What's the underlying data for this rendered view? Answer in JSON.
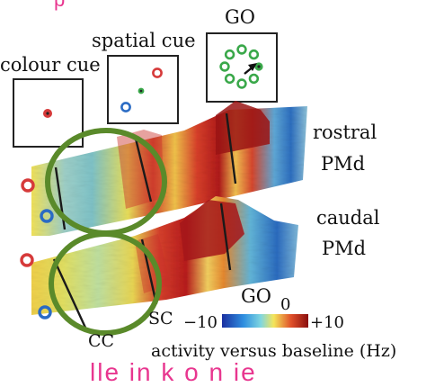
{
  "labels": {
    "colour_cue": "colour cue",
    "spatial_cue": "spatial cue",
    "go": "GO",
    "rostral_1": "rostral",
    "rostral_2": "PMd",
    "caudal_1": "caudal",
    "caudal_2": "PMd",
    "go_bottom": "GO",
    "zero": "0",
    "sc": "SC",
    "cc": "CC",
    "colorbar_min": "−10",
    "colorbar_max": "+10",
    "colorbar_caption": "activity versus baseline (Hz)"
  },
  "top_fragment": "p",
  "bottom_fragment": "lle   in   k   o   n   ie",
  "colors": {
    "pink_text": "#e8368f",
    "circle_green": "#5a8a2a",
    "target_red": "#d63a3a",
    "target_blue": "#2a6bc4",
    "target_green": "#3aa84a"
  },
  "icons": [
    "colour-cue-box-icon",
    "spatial-cue-box-icon",
    "go-target-ring-icon",
    "arrow-icon"
  ]
}
